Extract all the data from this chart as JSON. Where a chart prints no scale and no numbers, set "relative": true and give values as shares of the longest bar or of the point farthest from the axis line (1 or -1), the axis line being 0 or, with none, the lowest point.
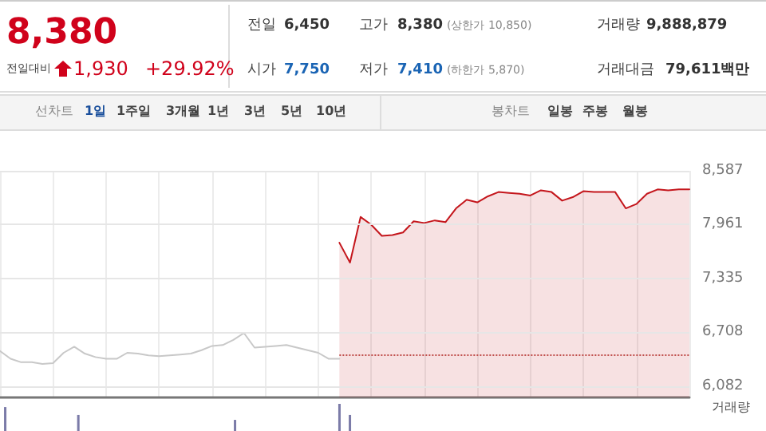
{
  "chart_data": [
    {
      "type": "other",
      "annotations": [
        "8,380",
        "전일대비",
        "1,930",
        "+29.92%",
        "전일",
        "6,450",
        "고가",
        "8,380",
        "(상한가 10,850)",
        "거래량",
        "9,888,879",
        "시가",
        "7,750",
        "저가",
        "7,410",
        "(하한가 5,870)",
        "거래대금",
        "79,611백만",
        "선차트",
        "1일",
        "1주일",
        "3개월",
        "1년",
        "3년",
        "5년",
        "10년",
        "봉차트",
        "일봉",
        "주봉",
        "월봉"
      ]
    },
    {
      "type": "line",
      "categories": [
        null,
        null,
        null,
        null,
        null,
        null,
        null,
        null,
        null,
        null,
        null,
        null,
        null,
        null,
        null,
        null,
        null,
        null,
        null,
        null,
        null,
        null,
        null,
        null,
        null,
        null,
        null,
        null,
        null,
        null,
        null,
        null,
        null,
        null,
        null,
        null,
        null,
        null,
        null,
        null,
        null,
        null,
        null,
        null,
        null,
        null,
        null,
        null,
        null,
        null,
        null,
        null,
        null,
        null,
        null,
        null,
        null,
        null,
        null,
        null,
        null,
        null,
        null,
        null,
        null,
        null
      ],
      "ylim": [
        5950,
        8587
      ],
      "yticks": [
        {
          "value": 6082,
          "label": "6,082"
        },
        {
          "value": 6708,
          "label": "6,708"
        },
        {
          "value": 7335,
          "label": "7,335"
        },
        {
          "value": 7961,
          "label": "7,961"
        },
        {
          "value": 8587,
          "label": "8,587"
        }
      ],
      "grid": true,
      "tick_labels": "y",
      "ref_lines": [
        {
          "axis": "y",
          "value": 6450,
          "color": "#c0504d",
          "line_style": "dotted"
        }
      ],
      "series": [
        {
          "type": "line",
          "color": "#c8c8c8",
          "values": [
            6490,
            6400,
            6360,
            6360,
            6340,
            6350,
            6470,
            6540,
            6460,
            6420,
            6400,
            6400,
            6470,
            6460,
            6440,
            6430,
            6440,
            6450,
            6460,
            6500,
            6550,
            6560,
            6620,
            6700,
            6530,
            6540,
            6550,
            6560,
            6530,
            6500,
            6470,
            6400,
            6400,
            null,
            null,
            null,
            null,
            null,
            null,
            null,
            null,
            null,
            null,
            null,
            null,
            null,
            null,
            null,
            null,
            null,
            null,
            null,
            null,
            null,
            null,
            null,
            null,
            null,
            null,
            null,
            null,
            null,
            null,
            null,
            null,
            null
          ]
        },
        {
          "type": "area",
          "color": "#c4161c",
          "values": [
            null,
            null,
            null,
            null,
            null,
            null,
            null,
            null,
            null,
            null,
            null,
            null,
            null,
            null,
            null,
            null,
            null,
            null,
            null,
            null,
            null,
            null,
            null,
            null,
            null,
            null,
            null,
            null,
            null,
            null,
            null,
            null,
            7750,
            7520,
            8050,
            7960,
            7830,
            7840,
            7870,
            8000,
            7980,
            8010,
            7990,
            8150,
            8250,
            8220,
            8290,
            8340,
            8330,
            8320,
            8300,
            8360,
            8340,
            8240,
            8280,
            8350,
            8340,
            8340,
            8340,
            8150,
            8200,
            8320,
            8370,
            8360,
            8370,
            8370
          ]
        }
      ]
    },
    {
      "type": "bar",
      "relative": true,
      "ylabel": "거래량",
      "tick_labels": false,
      "color": "#7b7ba8",
      "categories": [
        null,
        null,
        null,
        null,
        null,
        null,
        null,
        null,
        null,
        null,
        null,
        null,
        null,
        null,
        null,
        null,
        null,
        null,
        null,
        null,
        null,
        null,
        null,
        null,
        null,
        null,
        null,
        null,
        null,
        null,
        null,
        null,
        null,
        null,
        null,
        null,
        null,
        null,
        null,
        null,
        null,
        null,
        null,
        null,
        null,
        null,
        null,
        null,
        null,
        null,
        null,
        null,
        null,
        null,
        null,
        null,
        null,
        null,
        null,
        null,
        null,
        null,
        null,
        null,
        null,
        null
      ],
      "values": [
        0.88,
        0,
        0,
        0,
        0,
        0,
        0,
        0.59,
        0,
        0,
        0,
        0,
        0,
        0,
        0,
        0,
        0,
        0,
        0,
        0,
        0,
        0,
        0.41,
        0,
        0,
        0,
        0,
        0,
        0,
        0,
        0,
        0,
        1,
        0.59,
        0,
        0,
        0,
        0,
        0,
        0,
        0,
        0,
        0,
        0,
        0,
        0,
        0,
        0,
        0,
        0,
        0,
        0,
        0,
        0,
        0,
        0,
        0,
        0,
        0,
        0,
        0,
        0,
        0,
        0,
        0,
        0
      ]
    }
  ]
}
